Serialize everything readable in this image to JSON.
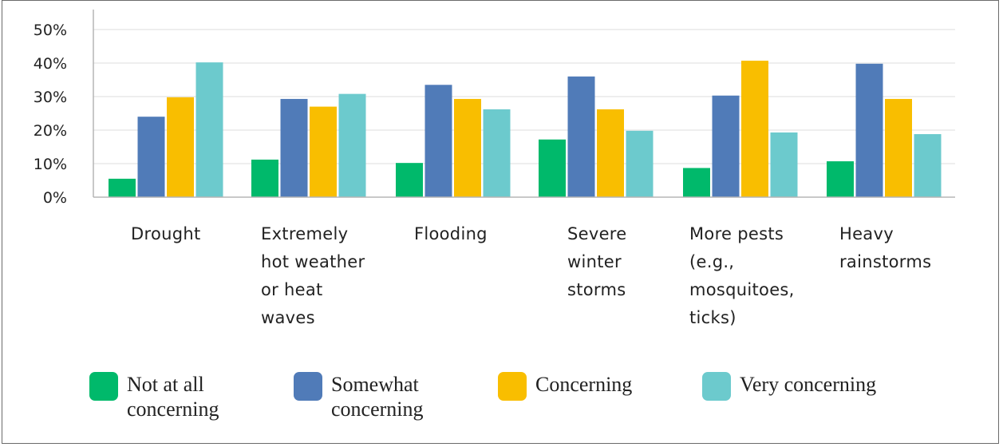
{
  "chart_data": {
    "type": "bar",
    "title": "",
    "xlabel": "",
    "ylabel": "",
    "ylim": [
      0,
      50
    ],
    "yticks": [
      0,
      10,
      20,
      30,
      40,
      50
    ],
    "ytick_labels": [
      "0%",
      "10%",
      "20%",
      "30%",
      "40%",
      "50%"
    ],
    "grid": true,
    "legend_position": "bottom",
    "categories": [
      "Drought",
      "Extremely\nhot weather\nor heat\nwaves",
      "Flooding",
      "Severe\nwinter\nstorms",
      "More pests\n(e.g.,\nmosquitoes,\nticks)",
      "Heavy\nrainstorms"
    ],
    "series": [
      {
        "name": "Not at all\nconcerning",
        "color": "#00b96b",
        "values": [
          5.5,
          11.2,
          10.2,
          17.2,
          8.7,
          10.7
        ]
      },
      {
        "name": "Somewhat\nconcerning",
        "color": "#507bb8",
        "values": [
          24.0,
          29.3,
          33.5,
          36.0,
          30.3,
          39.8
        ]
      },
      {
        "name": "Concerning",
        "color": "#f9be00",
        "values": [
          29.8,
          27.0,
          29.3,
          26.2,
          40.7,
          29.3
        ]
      },
      {
        "name": "Very concerning",
        "color": "#6ccacd",
        "values": [
          40.2,
          30.8,
          26.2,
          19.8,
          19.3,
          18.8
        ]
      }
    ]
  }
}
